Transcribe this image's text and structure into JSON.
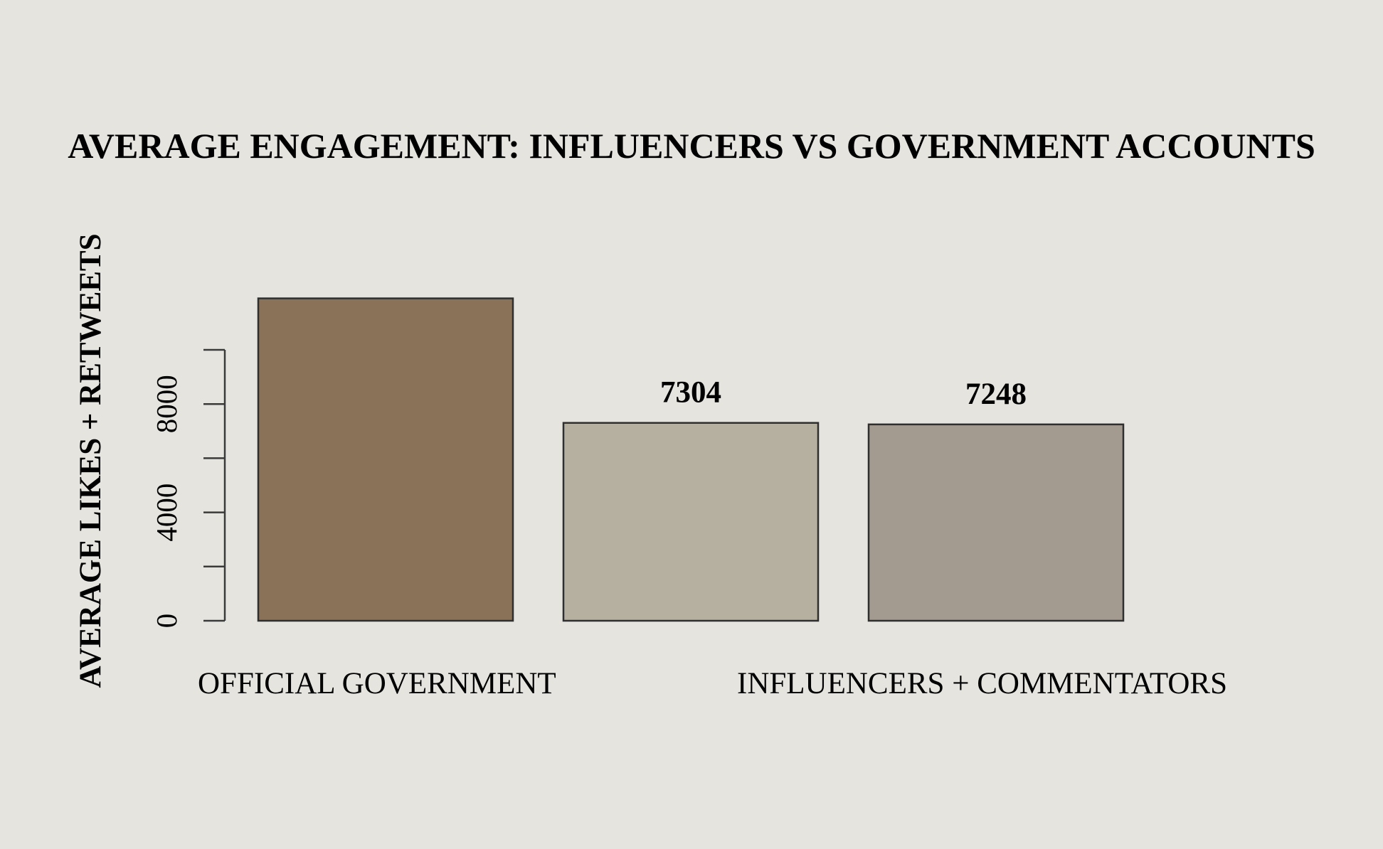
{
  "chart_data": {
    "type": "bar",
    "title": "AVERAGE ENGAGEMENT: INFLUENCERS VS GOVERNMENT ACCOUNTS",
    "xlabel": "",
    "ylabel": "AVERAGE LIKES + RETWEETS",
    "ylim": [
      0,
      11900
    ],
    "yticks": [
      0,
      2000,
      4000,
      6000,
      8000,
      10000
    ],
    "ytick_labels": [
      "0",
      "",
      "4000",
      "",
      "8000",
      ""
    ],
    "bars": [
      {
        "value": 11900,
        "label": "",
        "color": "#8A7258"
      },
      {
        "value": 7304,
        "label": "7304",
        "color": "#B6B0A1"
      },
      {
        "value": 7248,
        "label": "7248",
        "color": "#A39A90"
      }
    ],
    "category_labels": [
      "OFFICIAL GOVERNMENT",
      "INFLUENCERS + COMMENTATORS"
    ],
    "grid": false,
    "legend": "none"
  }
}
